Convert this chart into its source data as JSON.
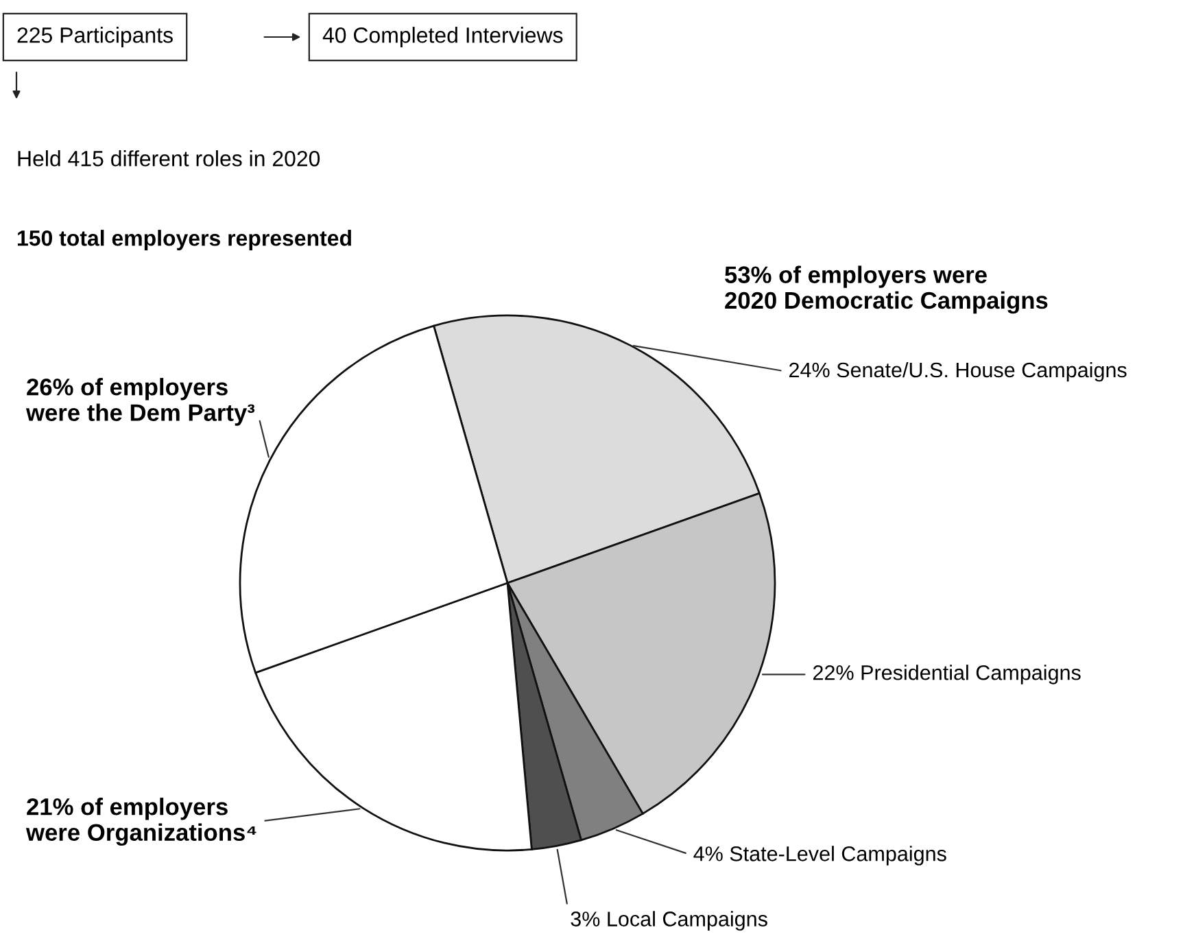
{
  "chart_data": {
    "type": "pie",
    "categories": [
      "24% Senate/U.S. House Campaigns",
      "22% Presidential Campaigns",
      "4% State-Level Campaigns",
      "3% Local Campaigns",
      "21% of employers\nwere Organizations⁴",
      "26% of employers\nwere the Dem Party³"
    ],
    "values": [
      24,
      22,
      4,
      3,
      21,
      26
    ],
    "colors": [
      "#dcdcdc",
      "#c6c6c6",
      "#808080",
      "#4f4f4f",
      "#ffffff",
      "#ffffff"
    ],
    "annotations": [
      "225 Participants",
      "40 Completed Interviews",
      "Held 415 different roles in 2020",
      "150 total employers represented",
      "53% of employers were\n2020 Democratic Campaigns"
    ]
  }
}
